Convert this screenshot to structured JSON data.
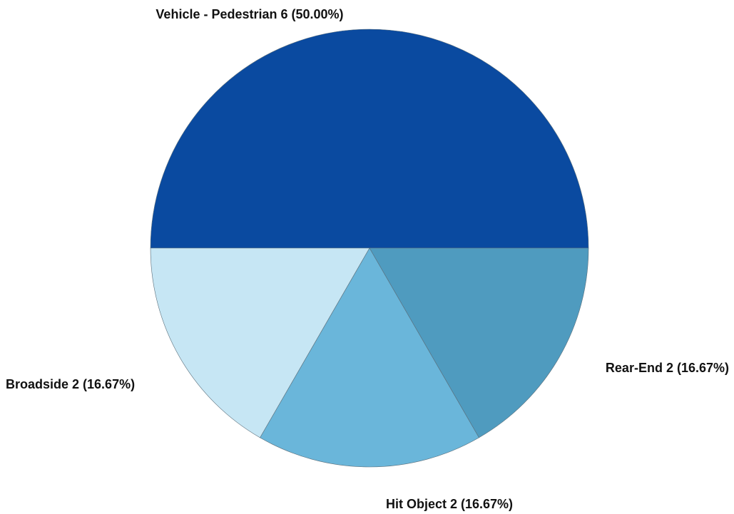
{
  "chart_data": {
    "type": "pie",
    "title": "",
    "slices": [
      {
        "name": "Vehicle - Pedestrian",
        "value": 6,
        "percent": "50.00%",
        "label": "Vehicle - Pedestrian  6 (50.00%)",
        "color": "#0a4aa0"
      },
      {
        "name": "Rear-End",
        "value": 2,
        "percent": "16.67%",
        "label": "Rear-End  2 (16.67%)",
        "color": "#4f9bbf"
      },
      {
        "name": "Hit Object",
        "value": 2,
        "percent": "16.67%",
        "label": "Hit Object  2 (16.67%)",
        "color": "#6ab6da"
      },
      {
        "name": "Broadside",
        "value": 2,
        "percent": "16.67%",
        "label": "Broadside  2 (16.67%)",
        "color": "#c6e6f4"
      }
    ]
  }
}
